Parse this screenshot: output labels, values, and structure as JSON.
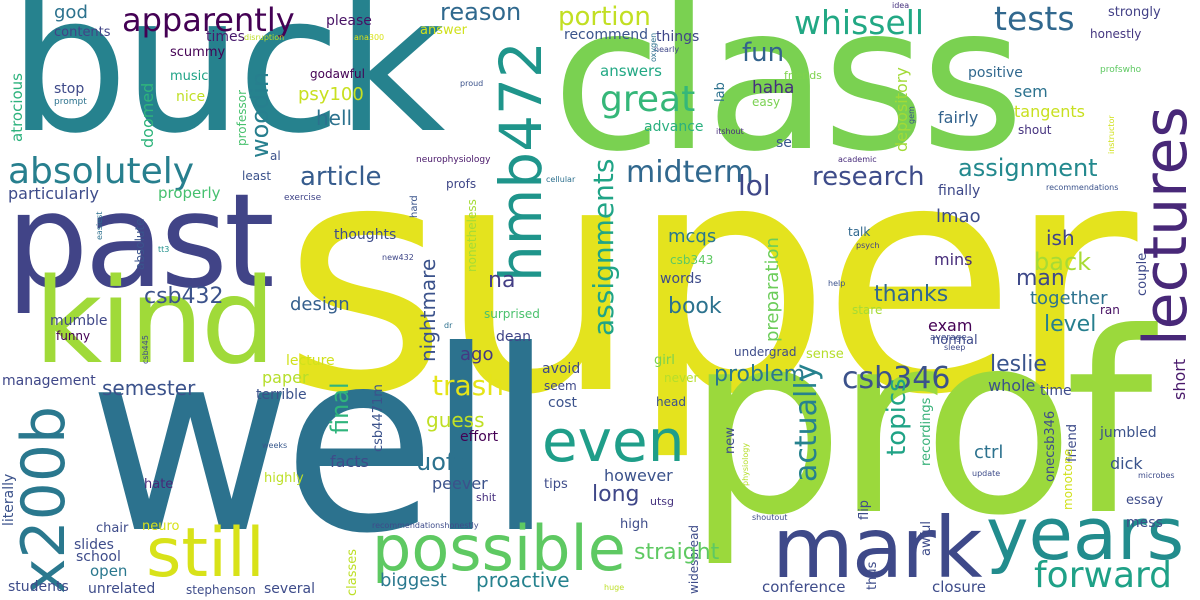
{
  "words": [
    {
      "text": "super",
      "color": "#e4e31e"
    },
    {
      "text": "class",
      "color": "#7ad151"
    },
    {
      "text": "buck",
      "color": "#26828e"
    },
    {
      "text": "well",
      "color": "#2c728e"
    },
    {
      "text": "prof",
      "color": "#9bd93c"
    },
    {
      "text": "past",
      "color": "#414487"
    },
    {
      "text": "kind",
      "color": "#a0da39"
    },
    {
      "text": "lectures",
      "color": "#482878"
    },
    {
      "text": "hmb472",
      "color": "#1f958b"
    },
    {
      "text": "mark",
      "color": "#3e4989"
    },
    {
      "text": "years",
      "color": "#228c8d"
    },
    {
      "text": "still",
      "color": "#d8e219"
    },
    {
      "text": "possible",
      "color": "#5ec962"
    },
    {
      "text": "x200b",
      "color": "#2a788e"
    },
    {
      "text": "even",
      "color": "#1f9e89"
    },
    {
      "text": "apparently",
      "color": "#440154"
    },
    {
      "text": "absolutely",
      "color": "#277f8e"
    },
    {
      "text": "whissell",
      "color": "#22a884"
    },
    {
      "text": "tests",
      "color": "#31688e"
    },
    {
      "text": "great",
      "color": "#35b779"
    },
    {
      "text": "midterm",
      "color": "#31688e"
    },
    {
      "text": "assignments",
      "color": "#20a486"
    },
    {
      "text": "forward",
      "color": "#1fa187"
    },
    {
      "text": "csb346",
      "color": "#3b528b"
    },
    {
      "text": "reason",
      "color": "#30698e"
    },
    {
      "text": "portion",
      "color": "#c2df23"
    },
    {
      "text": "fun",
      "color": "#33638d"
    },
    {
      "text": "article",
      "color": "#365c8d"
    },
    {
      "text": "research",
      "color": "#3e4c8a"
    },
    {
      "text": "assignment",
      "color": "#23898e"
    },
    {
      "text": "lol",
      "color": "#3f4788"
    },
    {
      "text": "woodin",
      "color": "#277f8e"
    },
    {
      "text": "god",
      "color": "#2c728e"
    },
    {
      "text": "contents",
      "color": "#414487"
    },
    {
      "text": "please",
      "color": "#471164"
    },
    {
      "text": "answer",
      "color": "#d0e11c"
    },
    {
      "text": "recommend",
      "color": "#3a548c"
    },
    {
      "text": "things",
      "color": "#3f4788"
    },
    {
      "text": "answers",
      "color": "#22a884"
    },
    {
      "text": "haha",
      "color": "#46307e"
    },
    {
      "text": "advance",
      "color": "#2ab07f"
    },
    {
      "text": "psy100",
      "color": "#c8e020"
    },
    {
      "text": "hell",
      "color": "#2c728e"
    },
    {
      "text": "doomed",
      "color": "#2fb47c"
    },
    {
      "text": "nice",
      "color": "#c0df25"
    },
    {
      "text": "music",
      "color": "#20a386"
    },
    {
      "text": "times",
      "color": "#481a6c"
    },
    {
      "text": "scummy",
      "color": "#440154"
    },
    {
      "text": "godawful",
      "color": "#440154"
    },
    {
      "text": "stop",
      "color": "#3e4989"
    },
    {
      "text": "atrocious",
      "color": "#2db27d"
    },
    {
      "text": "positive",
      "color": "#31688e"
    },
    {
      "text": "sem",
      "color": "#2c728e"
    },
    {
      "text": "tangents",
      "color": "#c8e020"
    },
    {
      "text": "fairly",
      "color": "#33638d"
    },
    {
      "text": "depository",
      "color": "#a2da37"
    },
    {
      "text": "strongly",
      "color": "#424086"
    },
    {
      "text": "honestly",
      "color": "#453781"
    },
    {
      "text": "shout",
      "color": "#46337f"
    },
    {
      "text": "profswho",
      "color": "#5ec962"
    },
    {
      "text": "friends",
      "color": "#7fd34e"
    },
    {
      "text": "easy",
      "color": "#7ad151"
    },
    {
      "text": "idea",
      "color": "#46327e"
    },
    {
      "text": "proud",
      "color": "#3b528b"
    },
    {
      "text": "ana300",
      "color": "#d8e219"
    },
    {
      "text": "disruption",
      "color": "#bade28"
    },
    {
      "text": "nearly",
      "color": "#3f4788"
    },
    {
      "text": "oxygen",
      "color": "#2d708e"
    },
    {
      "text": "lab",
      "color": "#2c728e"
    },
    {
      "text": "gem",
      "color": "#3b528b"
    },
    {
      "text": "instructor",
      "color": "#d0e11c"
    },
    {
      "text": "itshout",
      "color": "#472d7b"
    },
    {
      "text": "se",
      "color": "#39568c"
    },
    {
      "text": "academic",
      "color": "#472a7a"
    },
    {
      "text": "neurophysiology",
      "color": "#481769"
    },
    {
      "text": "prompt",
      "color": "#2c728e"
    },
    {
      "text": "al",
      "color": "#3b528b"
    },
    {
      "text": "professor",
      "color": "#48c16e"
    },
    {
      "text": "least",
      "color": "#3b528b"
    },
    {
      "text": "particularly",
      "color": "#3e4c8a"
    },
    {
      "text": "properly",
      "color": "#46c06f"
    },
    {
      "text": "exercise",
      "color": "#404588"
    },
    {
      "text": "hard",
      "color": "#3a548c"
    },
    {
      "text": "profs",
      "color": "#3f4788"
    },
    {
      "text": "cellular",
      "color": "#2d708e"
    },
    {
      "text": "finally",
      "color": "#3e4989"
    },
    {
      "text": "recommendations",
      "color": "#3b528b"
    },
    {
      "text": "nightmare",
      "color": "#3b528b"
    },
    {
      "text": "nonetheless",
      "color": "#a5db36"
    },
    {
      "text": "thoughts",
      "color": "#3e4c8a"
    },
    {
      "text": "easiest",
      "color": "#2d708e"
    },
    {
      "text": "absolute",
      "color": "#3a548c"
    },
    {
      "text": "tt3",
      "color": "#21918c"
    },
    {
      "text": "new432",
      "color": "#3f4788"
    },
    {
      "text": "mcqs",
      "color": "#2a788e"
    },
    {
      "text": "csb343",
      "color": "#5ec962"
    },
    {
      "text": "preparation",
      "color": "#6ccd5a"
    },
    {
      "text": "lmao",
      "color": "#3e4c8a"
    },
    {
      "text": "ish",
      "color": "#414487"
    },
    {
      "text": "talk",
      "color": "#31688e"
    },
    {
      "text": "psych",
      "color": "#424086"
    },
    {
      "text": "mins",
      "color": "#472d7b"
    },
    {
      "text": "back",
      "color": "#a8db34"
    },
    {
      "text": "man",
      "color": "#3e4989"
    },
    {
      "text": "thanks",
      "color": "#31688e"
    },
    {
      "text": "together",
      "color": "#2c728e"
    },
    {
      "text": "couple",
      "color": "#3e4989"
    },
    {
      "text": "csb432",
      "color": "#3b528b"
    },
    {
      "text": "na",
      "color": "#433e85"
    },
    {
      "text": "mumble",
      "color": "#3f4788"
    },
    {
      "text": "design",
      "color": "#355f8d"
    },
    {
      "text": "surprised",
      "color": "#4ac16d"
    },
    {
      "text": "words",
      "color": "#3e4c8a"
    },
    {
      "text": "book",
      "color": "#2c728e"
    },
    {
      "text": "help",
      "color": "#3b528b"
    },
    {
      "text": "stare",
      "color": "#a5db36"
    },
    {
      "text": "ran",
      "color": "#471063"
    },
    {
      "text": "dean",
      "color": "#404588"
    },
    {
      "text": "exam",
      "color": "#440154"
    },
    {
      "text": "funny",
      "color": "#440154"
    },
    {
      "text": "dr",
      "color": "#2d708e"
    },
    {
      "text": "csb445",
      "color": "#3e4c8a"
    },
    {
      "text": "level",
      "color": "#277f8e"
    },
    {
      "text": "normal",
      "color": "#3e4989"
    },
    {
      "text": "average",
      "color": "#3e4c8a"
    },
    {
      "text": "sleep",
      "color": "#3e4989"
    },
    {
      "text": "lecture",
      "color": "#d0e11c"
    },
    {
      "text": "management",
      "color": "#3f4788"
    },
    {
      "text": "terrible",
      "color": "#3b528b"
    },
    {
      "text": "ago",
      "color": "#443983"
    },
    {
      "text": "leslie",
      "color": "#3a548c"
    },
    {
      "text": "paper",
      "color": "#b5de2b"
    },
    {
      "text": "semester",
      "color": "#3b528b"
    },
    {
      "text": "undergrad",
      "color": "#3e4c8a"
    },
    {
      "text": "sense",
      "color": "#b5de2b"
    },
    {
      "text": "girl",
      "color": "#7ad151"
    },
    {
      "text": "avoid",
      "color": "#3e4989"
    },
    {
      "text": "problem",
      "color": "#2a788e"
    },
    {
      "text": "never",
      "color": "#b5de2b"
    },
    {
      "text": "whole",
      "color": "#3b528b"
    },
    {
      "text": "time",
      "color": "#3e4c8a"
    },
    {
      "text": "short",
      "color": "#48186a"
    },
    {
      "text": "seem",
      "color": "#3e4989"
    },
    {
      "text": "final",
      "color": "#2fb47c"
    },
    {
      "text": "trash",
      "color": "#e5e419"
    },
    {
      "text": "csb4471m",
      "color": "#3b528b"
    },
    {
      "text": "cost",
      "color": "#3b528b"
    },
    {
      "text": "head",
      "color": "#3b528b"
    },
    {
      "text": "guess",
      "color": "#c0df25"
    },
    {
      "text": "actually",
      "color": "#26828e"
    },
    {
      "text": "topics",
      "color": "#20a386"
    },
    {
      "text": "recordings",
      "color": "#3ab27a"
    },
    {
      "text": "jumbled",
      "color": "#3b528b"
    },
    {
      "text": "dick",
      "color": "#3a548c"
    },
    {
      "text": "ctrl",
      "color": "#2c728e"
    },
    {
      "text": "uoft",
      "color": "#2c728e"
    },
    {
      "text": "effort",
      "color": "#440154"
    },
    {
      "text": "however",
      "color": "#3b528b"
    },
    {
      "text": "long",
      "color": "#3f4788"
    },
    {
      "text": "facts",
      "color": "#3e4c8a"
    },
    {
      "text": "peever",
      "color": "#3b528b"
    },
    {
      "text": "literally",
      "color": "#3b528b"
    },
    {
      "text": "weeks",
      "color": "#38588c"
    },
    {
      "text": "hate",
      "color": "#482878"
    },
    {
      "text": "highly",
      "color": "#bddf26"
    },
    {
      "text": "tips",
      "color": "#3e4c8a"
    },
    {
      "text": "shit",
      "color": "#46307e"
    },
    {
      "text": "utsg",
      "color": "#46337f"
    },
    {
      "text": "new",
      "color": "#3e4c8a"
    },
    {
      "text": "physiology",
      "color": "#b5de2b"
    },
    {
      "text": "flip",
      "color": "#3e4c8a"
    },
    {
      "text": "onecsb346",
      "color": "#3e4c8a"
    },
    {
      "text": "friend",
      "color": "#3e4c8a"
    },
    {
      "text": "essay",
      "color": "#3e4c8a"
    },
    {
      "text": "microbes",
      "color": "#3e4c8a"
    },
    {
      "text": "monotone",
      "color": "#d0e11c"
    },
    {
      "text": "update",
      "color": "#3e4c8a"
    },
    {
      "text": "idea2",
      "color": "#2a788e"
    },
    {
      "text": "mess",
      "color": "#3e4c8a"
    },
    {
      "text": "chair",
      "color": "#3e4c8a"
    },
    {
      "text": "neuro",
      "color": "#d8e219"
    },
    {
      "text": "slides",
      "color": "#3e4c8a"
    },
    {
      "text": "school",
      "color": "#3e4c8a"
    },
    {
      "text": "open",
      "color": "#2a788e"
    },
    {
      "text": "recommendationshonestly",
      "color": "#3e4c8a"
    },
    {
      "text": "high",
      "color": "#3e4c8a"
    },
    {
      "text": "widespread",
      "color": "#3e4c8a"
    },
    {
      "text": "shoutout",
      "color": "#3e4c8a"
    },
    {
      "text": "awful",
      "color": "#3e4c8a"
    },
    {
      "text": "thus",
      "color": "#3e4c8a"
    },
    {
      "text": "classes",
      "color": "#bddf26"
    },
    {
      "text": "biggest",
      "color": "#2a788e"
    },
    {
      "text": "proactive",
      "color": "#26828e"
    },
    {
      "text": "straight",
      "color": "#5ec962"
    },
    {
      "text": "conference",
      "color": "#3e4c8a"
    },
    {
      "text": "closure",
      "color": "#3e4c8a"
    },
    {
      "text": "students",
      "color": "#3e4c8a"
    },
    {
      "text": "unrelated",
      "color": "#3e4c8a"
    },
    {
      "text": "stephenson",
      "color": "#3e4c8a"
    },
    {
      "text": "several",
      "color": "#3e4c8a"
    },
    {
      "text": "huge",
      "color": "#bddf26"
    },
    {
      "text": "small",
      "color": "#3e4c8a"
    }
  ]
}
